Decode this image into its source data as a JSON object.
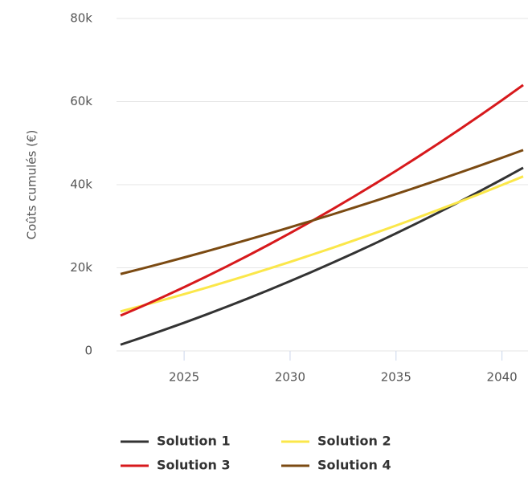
{
  "chart_data": {
    "type": "line",
    "y_label": "Coûts cumulés (€)",
    "x": [
      2022,
      2023,
      2024,
      2025,
      2026,
      2027,
      2028,
      2029,
      2030,
      2031,
      2032,
      2033,
      2034,
      2035,
      2036,
      2037,
      2038,
      2039,
      2040,
      2041
    ],
    "series": [
      {
        "name": "Solution 1",
        "color": "#333333",
        "values": [
          1500,
          3200,
          4960,
          6780,
          8660,
          10600,
          12600,
          14660,
          16780,
          18960,
          21200,
          23500,
          25860,
          28280,
          30760,
          33300,
          35900,
          38560,
          41280,
          44060
        ]
      },
      {
        "name": "Solution 2",
        "color": "#fbe74a",
        "values": [
          9500,
          10850,
          12240,
          13670,
          15140,
          16650,
          18200,
          19790,
          21420,
          23090,
          24800,
          26550,
          28340,
          30170,
          32040,
          33950,
          35900,
          37890,
          39920,
          41990
        ]
      },
      {
        "name": "Solution 3",
        "color": "#d7191c",
        "values": [
          8500,
          10700,
          12980,
          15340,
          17780,
          20300,
          22900,
          25580,
          28340,
          31180,
          34100,
          37100,
          40180,
          43340,
          46580,
          49900,
          53300,
          56780,
          60340,
          63980
        ]
      },
      {
        "name": "Solution 4",
        "color": "#7b4a12",
        "values": [
          18500,
          19800,
          21130,
          22490,
          23880,
          25300,
          26750,
          28230,
          29740,
          31280,
          32850,
          34450,
          36080,
          37740,
          39430,
          41150,
          42900,
          44680,
          46490,
          48330
        ]
      }
    ],
    "xlim": [
      2022,
      2041
    ],
    "xticks": [
      2025,
      2030,
      2035,
      2040
    ],
    "ylim": [
      0,
      80000
    ],
    "yticks": [
      0,
      {
        "value": 20000,
        "label": "20k"
      },
      {
        "value": 40000,
        "label": "40k"
      },
      {
        "value": 60000,
        "label": "60k"
      },
      {
        "value": 80000,
        "label": "80k"
      }
    ],
    "grid": true
  }
}
